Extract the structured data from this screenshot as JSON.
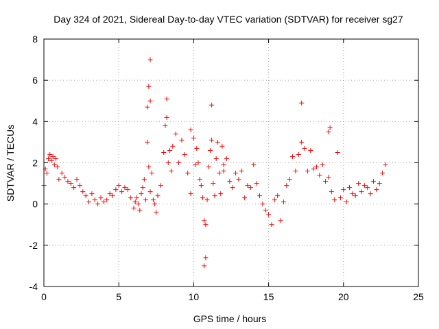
{
  "chart_data": {
    "type": "scatter",
    "title": "Day 324 of 2021, Sidereal Day-to-day VTEC variation (SDTVAR) for receiver sg27",
    "xlabel": "GPS time / hours",
    "ylabel": "SDTVAR / TECUs",
    "xlim": [
      0,
      25
    ],
    "ylim": [
      -4,
      8
    ],
    "xticks": [
      0,
      5,
      10,
      15,
      20,
      25
    ],
    "yticks": [
      -4,
      -2,
      0,
      2,
      4,
      6,
      8
    ],
    "xtick_labels": [
      "0",
      "5",
      "10",
      "15",
      "20",
      "25"
    ],
    "ytick_labels": [
      "-4",
      "-2",
      "0",
      "2",
      "4",
      "6",
      "8"
    ],
    "grid": true,
    "marker": "+",
    "color": "#ff0000",
    "series": [
      {
        "name": "SDTVAR sg27",
        "x": [
          0.0,
          0.1,
          0.2,
          0.3,
          0.4,
          0.5,
          0.6,
          0.7,
          0.8,
          0.9,
          1.0,
          1.2,
          1.4,
          1.6,
          1.8,
          2.0,
          2.2,
          2.4,
          2.6,
          2.8,
          3.0,
          3.2,
          3.4,
          3.6,
          3.8,
          4.0,
          4.2,
          4.4,
          4.6,
          4.8,
          5.0,
          5.2,
          5.4,
          5.6,
          5.8,
          6.0,
          6.1,
          6.2,
          6.3,
          6.4,
          6.5,
          6.6,
          6.7,
          6.8,
          6.9,
          7.0,
          7.1,
          7.2,
          7.3,
          7.4,
          7.5,
          7.6,
          7.8,
          8.0,
          8.1,
          8.2,
          8.3,
          8.4,
          8.5,
          8.6,
          8.8,
          9.0,
          9.2,
          9.4,
          9.6,
          9.8,
          10.0,
          10.1,
          10.2,
          10.3,
          10.4,
          10.5,
          10.6,
          10.7,
          10.8,
          10.9,
          11.0,
          11.1,
          11.2,
          11.3,
          11.4,
          11.5,
          11.6,
          11.7,
          11.8,
          11.9,
          12.0,
          12.2,
          12.4,
          12.6,
          12.8,
          13.0,
          13.2,
          13.4,
          13.6,
          13.8,
          14.0,
          14.2,
          14.4,
          14.6,
          14.8,
          15.0,
          15.2,
          15.4,
          15.6,
          15.8,
          16.0,
          16.2,
          16.4,
          16.6,
          16.8,
          17.0,
          17.2,
          17.4,
          17.6,
          17.8,
          18.0,
          18.2,
          18.4,
          18.6,
          18.8,
          19.0,
          19.2,
          19.4,
          19.6,
          19.8,
          20.0,
          20.2,
          20.4,
          20.6,
          20.8,
          21.0,
          21.2,
          21.4,
          21.6,
          21.8,
          22.0,
          22.2,
          22.4,
          22.6,
          22.8,
          7.1,
          7.0,
          7.1,
          6.9,
          8.2,
          11.2,
          10.8,
          10.7,
          17.2,
          19.1,
          19.0,
          12.0,
          9.8
        ],
        "y": [
          0.9,
          1.7,
          1.5,
          2.2,
          2.4,
          2.1,
          2.3,
          1.9,
          2.2,
          1.8,
          1.2,
          1.5,
          1.3,
          1.1,
          1.0,
          0.8,
          1.2,
          0.9,
          0.6,
          0.4,
          0.1,
          0.5,
          0.2,
          0.0,
          0.3,
          0.1,
          0.2,
          0.5,
          0.4,
          0.7,
          0.9,
          0.6,
          0.8,
          0.7,
          0.3,
          -0.2,
          0.1,
          0.3,
          0.0,
          -0.3,
          0.5,
          0.8,
          1.2,
          0.2,
          3.0,
          1.8,
          0.6,
          1.5,
          0.2,
          0.0,
          -0.4,
          0.4,
          0.9,
          2.5,
          3.8,
          4.2,
          2.0,
          2.6,
          1.6,
          2.8,
          3.4,
          2.0,
          3.1,
          2.4,
          1.5,
          0.5,
          3.2,
          1.9,
          2.7,
          2.0,
          1.2,
          0.9,
          0.3,
          -0.8,
          -1.0,
          0.2,
          1.8,
          2.6,
          3.1,
          1.0,
          0.4,
          2.2,
          3.0,
          1.5,
          0.5,
          2.8,
          1.9,
          2.2,
          1.1,
          0.8,
          1.5,
          1.2,
          1.6,
          0.3,
          0.9,
          0.8,
          1.9,
          1.0,
          0.4,
          0.0,
          -0.3,
          -0.5,
          -1.0,
          0.2,
          0.4,
          -0.8,
          0.1,
          0.9,
          1.2,
          2.3,
          1.6,
          2.4,
          3.0,
          2.7,
          1.6,
          2.6,
          1.7,
          1.8,
          1.4,
          1.9,
          1.1,
          1.3,
          0.6,
          0.2,
          2.5,
          0.3,
          0.7,
          0.1,
          0.8,
          0.5,
          0.4,
          1.0,
          0.6,
          0.9,
          0.8,
          0.5,
          1.1,
          0.7,
          1.0,
          1.5,
          1.9,
          7.0,
          5.7,
          5.0,
          4.7,
          5.1,
          4.8,
          -2.6,
          -3.0,
          4.9,
          3.7,
          3.5,
          1.6,
          3.6
        ]
      }
    ]
  }
}
